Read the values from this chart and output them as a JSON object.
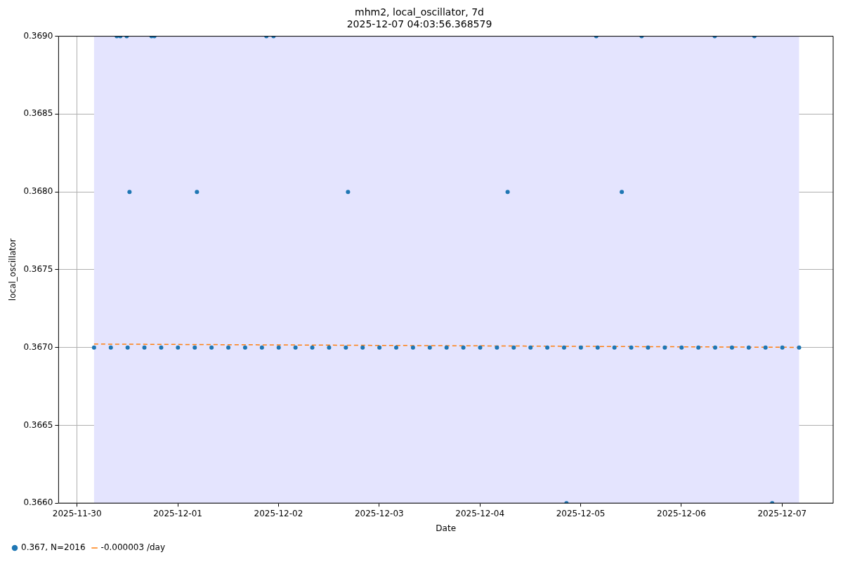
{
  "chart_data": {
    "type": "scatter",
    "title": "mhm2, local_oscillator, 7d",
    "subtitle": "2025-12-07 04:03:56.368579",
    "xlabel": "Date",
    "ylabel": "local_oscillator",
    "xlim": [
      "2025-11-29T19:36",
      "2025-12-07T12:10"
    ],
    "xticks": [
      "2025-11-30",
      "2025-12-01",
      "2025-12-02",
      "2025-12-03",
      "2025-12-04",
      "2025-12-05",
      "2025-12-06",
      "2025-12-07"
    ],
    "ylim": [
      0.366,
      0.369
    ],
    "yticks": [
      {
        "value": 0.366,
        "label": "0.3660"
      },
      {
        "value": 0.3665,
        "label": "0.3665"
      },
      {
        "value": 0.367,
        "label": "0.3670"
      },
      {
        "value": 0.3675,
        "label": "0.3675"
      },
      {
        "value": 0.368,
        "label": "0.3680"
      },
      {
        "value": 0.3685,
        "label": "0.3685"
      },
      {
        "value": 0.369,
        "label": "0.3690"
      }
    ],
    "grid": true,
    "legend": "bottom left",
    "marker": "circle",
    "bands": [
      {
        "axis": "x",
        "from": "2025-11-30T04:03",
        "to": "2025-12-07T04:03",
        "color": "#e4e4fe"
      }
    ],
    "series": [
      {
        "name": "0.367, N=2016",
        "color": "#1f77b4",
        "x": [
          "2025-11-30T04:03",
          "2025-11-30T08:03",
          "2025-11-30T12:03",
          "2025-11-30T16:03",
          "2025-11-30T20:03",
          "2025-12-01T00:03",
          "2025-12-01T04:03",
          "2025-12-01T08:03",
          "2025-12-01T12:03",
          "2025-12-01T16:03",
          "2025-12-01T20:03",
          "2025-12-02T00:03",
          "2025-12-02T04:03",
          "2025-12-02T08:03",
          "2025-12-02T12:03",
          "2025-12-02T16:03",
          "2025-12-02T20:03",
          "2025-12-03T00:03",
          "2025-12-03T04:03",
          "2025-12-03T08:03",
          "2025-12-03T12:03",
          "2025-12-03T16:03",
          "2025-12-03T20:03",
          "2025-12-04T00:03",
          "2025-12-04T04:03",
          "2025-12-04T08:03",
          "2025-12-04T12:03",
          "2025-12-04T16:03",
          "2025-12-04T20:03",
          "2025-12-05T00:03",
          "2025-12-05T04:03",
          "2025-12-05T08:03",
          "2025-12-05T12:03",
          "2025-12-05T16:03",
          "2025-12-05T20:03",
          "2025-12-06T00:03",
          "2025-12-06T04:03",
          "2025-12-06T08:03",
          "2025-12-06T12:03",
          "2025-12-06T16:03",
          "2025-12-06T20:03",
          "2025-12-07T00:03",
          "2025-12-07T04:03",
          "2025-11-30T09:28",
          "2025-11-30T10:19",
          "2025-11-30T11:50",
          "2025-11-30T17:45",
          "2025-11-30T18:25",
          "2025-12-01T21:07",
          "2025-12-01T22:49",
          "2025-12-05T03:43",
          "2025-12-05T14:32",
          "2025-12-06T07:57",
          "2025-12-06T17:24",
          "2025-11-30T12:30",
          "2025-12-01T04:34",
          "2025-12-02T16:34",
          "2025-12-04T06:36",
          "2025-12-05T09:48",
          "2025-12-04T20:37",
          "2025-12-06T21:38"
        ],
        "values": [
          0.367,
          0.367,
          0.367,
          0.367,
          0.367,
          0.367,
          0.367,
          0.367,
          0.367,
          0.367,
          0.367,
          0.367,
          0.367,
          0.367,
          0.367,
          0.367,
          0.367,
          0.367,
          0.367,
          0.367,
          0.367,
          0.367,
          0.367,
          0.367,
          0.367,
          0.367,
          0.367,
          0.367,
          0.367,
          0.367,
          0.367,
          0.367,
          0.367,
          0.367,
          0.367,
          0.367,
          0.367,
          0.367,
          0.367,
          0.367,
          0.367,
          0.367,
          0.367,
          0.369,
          0.369,
          0.369,
          0.369,
          0.369,
          0.369,
          0.369,
          0.369,
          0.369,
          0.369,
          0.369,
          0.368,
          0.368,
          0.368,
          0.368,
          0.368,
          0.366,
          0.366
        ]
      },
      {
        "name": "-0.000003 /day",
        "type": "line",
        "color": "#ff7f0e",
        "line_style": "dashed",
        "marker": "none",
        "x": [
          "2025-11-30T04:03",
          "2025-12-07T04:03"
        ],
        "values": [
          0.367022,
          0.367001
        ]
      }
    ]
  }
}
